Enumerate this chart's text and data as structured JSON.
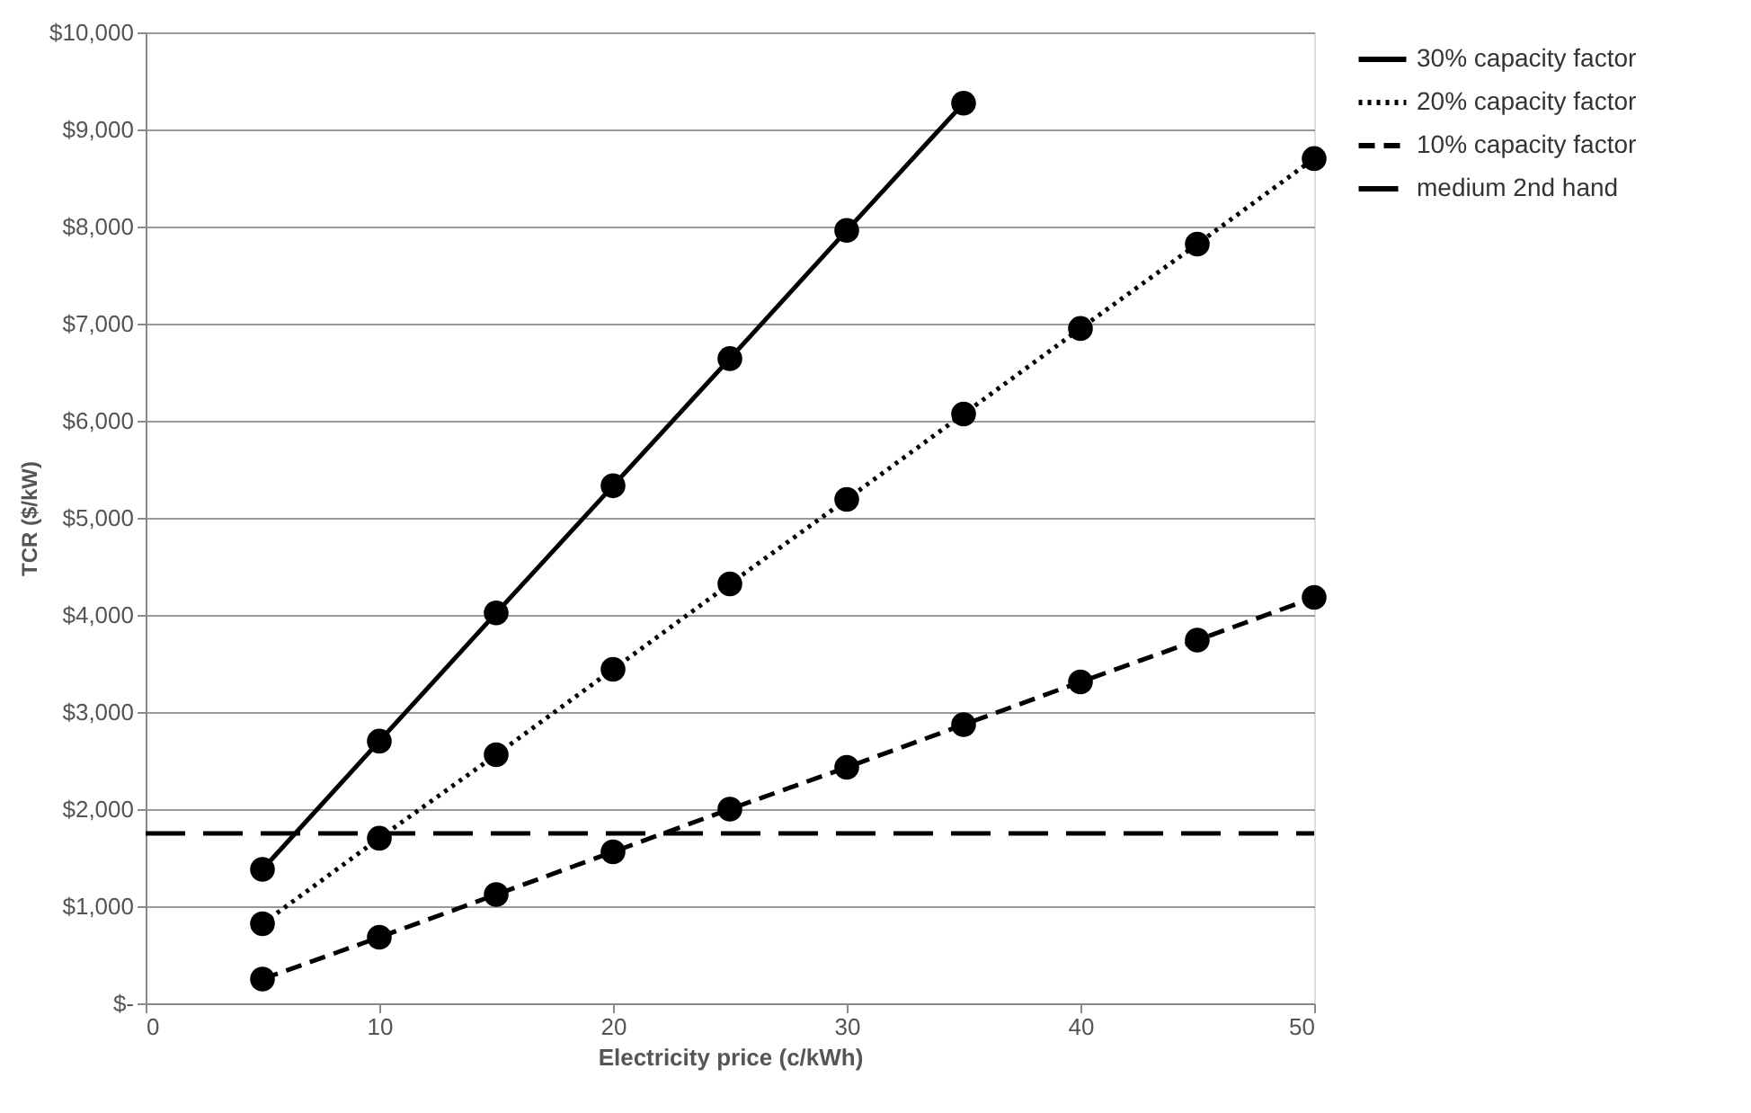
{
  "chart_data": {
    "type": "line",
    "xlabel": "Electricity price (c/kWh)",
    "ylabel": "TCR ($/kW)",
    "x": [
      5,
      10,
      15,
      20,
      25,
      30,
      35,
      40,
      45,
      50
    ],
    "series": [
      {
        "name": "30% capacity factor",
        "color": "#000000",
        "line_style": "solid",
        "values": [
          1380,
          2700,
          4020,
          5330,
          6640,
          7960,
          9270,
          null,
          null,
          null
        ]
      },
      {
        "name": "20% capacity factor",
        "color": "#000000",
        "line_style": "dotted",
        "values": [
          820,
          1700,
          2560,
          3440,
          4320,
          5190,
          6070,
          6950,
          7820,
          8700
        ]
      },
      {
        "name": "10% capacity factor",
        "color": "#000000",
        "line_style": "dashed",
        "values": [
          250,
          680,
          1120,
          1560,
          2000,
          2430,
          2870,
          3310,
          3740,
          4180
        ]
      }
    ],
    "ref_lines": [
      {
        "axis": "y",
        "value": 1750,
        "label": "medium 2nd hand",
        "color": "#000000",
        "line_style": "dashed"
      }
    ],
    "marker": "circle",
    "grid": "y",
    "legend": "right",
    "xlim": [
      0,
      50
    ],
    "xticks": [
      0,
      10,
      20,
      30,
      40,
      50
    ],
    "ylim": [
      0,
      10000
    ],
    "yticks": [
      {
        "value": 0,
        "label": "$-"
      },
      {
        "value": 1000,
        "label": "$1,000"
      },
      {
        "value": 2000,
        "label": "$2,000"
      },
      {
        "value": 3000,
        "label": "$3,000"
      },
      {
        "value": 4000,
        "label": "$4,000"
      },
      {
        "value": 5000,
        "label": "$5,000"
      },
      {
        "value": 6000,
        "label": "$6,000"
      },
      {
        "value": 7000,
        "label": "$7,000"
      },
      {
        "value": 8000,
        "label": "$8,000"
      },
      {
        "value": 9000,
        "label": "$9,000"
      },
      {
        "value": 10000,
        "label": "$10,000"
      }
    ]
  }
}
